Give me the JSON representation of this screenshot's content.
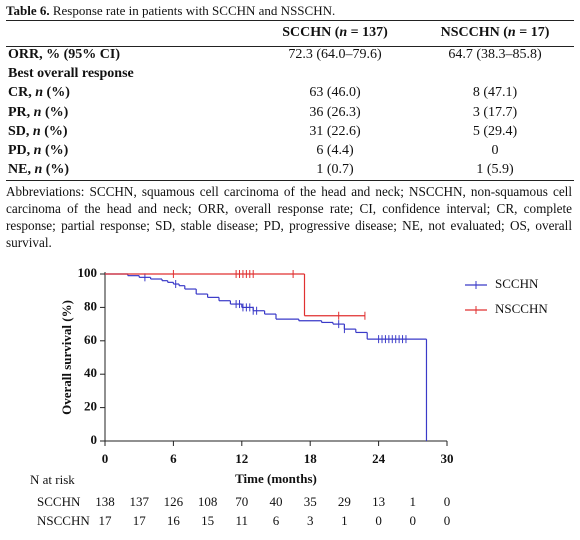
{
  "caption": {
    "label": "Table 6.",
    "text": " Response rate in patients with SCCHN and NSSCHN."
  },
  "table": {
    "columns": [
      {
        "pre": "SCCHN (",
        "em": "n",
        "post": " = 137)"
      },
      {
        "pre": "NSCCHN (",
        "em": "n",
        "post": " = 17)"
      }
    ],
    "rows": [
      {
        "label": {
          "pre": "ORR, % (95% CI)"
        },
        "cells": [
          "72.3 (64.0–79.6)",
          "64.7 (38.3–85.8)"
        ]
      },
      {
        "label": {
          "pre": "Best overall response"
        }
      },
      {
        "label": {
          "pre": "CR, ",
          "em": "n",
          "post": " (%)"
        },
        "cells": [
          "63 (46.0)",
          "8 (47.1)"
        ]
      },
      {
        "label": {
          "pre": "PR, ",
          "em": "n",
          "post": " (%)"
        },
        "cells": [
          "36 (26.3)",
          "3 (17.7)"
        ]
      },
      {
        "label": {
          "pre": "SD, ",
          "em": "n",
          "post": " (%)"
        },
        "cells": [
          "31 (22.6)",
          "5 (29.4)"
        ]
      },
      {
        "label": {
          "pre": "PD, ",
          "em": "n",
          "post": " (%)"
        },
        "cells": [
          "6 (4.4)",
          "0"
        ]
      },
      {
        "label": {
          "pre": "NE, ",
          "em": "n",
          "post": " (%)"
        },
        "cells": [
          "1 (0.7)",
          "1 (5.9)"
        ]
      }
    ],
    "footnote": "Abbreviations: SCCHN, squamous cell carcinoma of the head and neck; NSCCHN, non-squamous cell carcinoma of the head and neck; ORR, overall response rate; CI, confidence interval; CR, complete response; partial response; SD, stable disease; PD, progressive disease; NE, not evaluated; OS, overall survival."
  },
  "chart_data": {
    "type": "km",
    "x_label": "Time (months)",
    "y_label": "Overall survival (%)",
    "xlim": [
      0,
      30
    ],
    "xticks": [
      0,
      6,
      12,
      18,
      24,
      30
    ],
    "ylim": [
      0,
      100
    ],
    "yticks": [
      0,
      20,
      40,
      60,
      80,
      100
    ],
    "series": [
      {
        "name": "SCCHN",
        "color": "#3a3ac8",
        "x": [
          0,
          2,
          3,
          4,
          5,
          5.5,
          6,
          6.5,
          7,
          8,
          9,
          10,
          11,
          12,
          13,
          14,
          15,
          17,
          19,
          20,
          21,
          22,
          23,
          28.2
        ],
        "values": [
          100,
          99,
          98,
          97,
          96,
          95,
          94,
          93,
          91,
          88,
          86,
          84,
          82,
          80,
          78,
          76,
          73,
          72,
          71,
          70,
          67,
          65,
          61,
          0
        ],
        "censored": [
          3.5,
          6.2,
          11.5,
          11.8,
          12.1,
          12.4,
          12.7,
          13.0,
          13.3,
          20.5,
          21.0,
          24.0,
          24.3,
          24.6,
          24.9,
          25.2,
          25.5,
          25.8,
          26.1,
          26.4
        ]
      },
      {
        "name": "NSCCHN",
        "color": "#e03030",
        "x": [
          0,
          17.5
        ],
        "values": [
          100,
          75
        ],
        "censored": [
          6,
          11.5,
          11.8,
          12.1,
          12.4,
          12.7,
          13.0,
          16.5,
          20.5,
          22.8
        ]
      }
    ],
    "risk_table": {
      "title": "N at risk",
      "rows": [
        {
          "name": "SCCHN",
          "values": [
            138,
            137,
            126,
            108,
            70,
            40,
            35,
            29,
            13,
            1,
            0
          ]
        },
        {
          "name": "NSCCHN",
          "values": [
            17,
            17,
            16,
            15,
            11,
            6,
            3,
            1,
            0,
            0,
            0
          ]
        }
      ]
    }
  }
}
